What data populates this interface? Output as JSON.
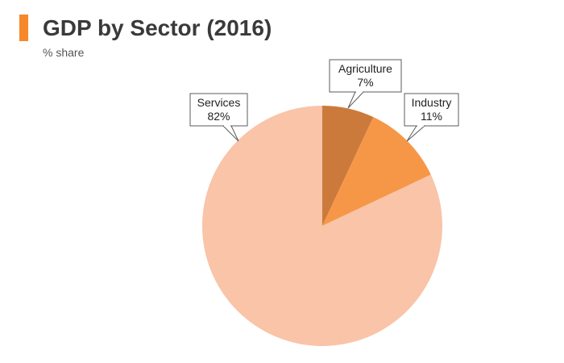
{
  "header": {
    "title": "GDP by Sector (2016)",
    "subtitle": "% share",
    "accent_color": "#f7872b"
  },
  "chart_data": {
    "type": "pie",
    "title": "GDP by Sector (2016)",
    "subtitle": "% share",
    "start_angle": "12 o'clock, clockwise",
    "legend": "none (callout labels)",
    "slices": [
      {
        "name": "Agriculture",
        "value": 7,
        "label": "7%",
        "color": "#cc7a3b"
      },
      {
        "name": "Industry",
        "value": 11,
        "label": "11%",
        "color": "#f69748"
      },
      {
        "name": "Services",
        "value": 82,
        "label": "82%",
        "color": "#f9c4a8"
      }
    ]
  }
}
